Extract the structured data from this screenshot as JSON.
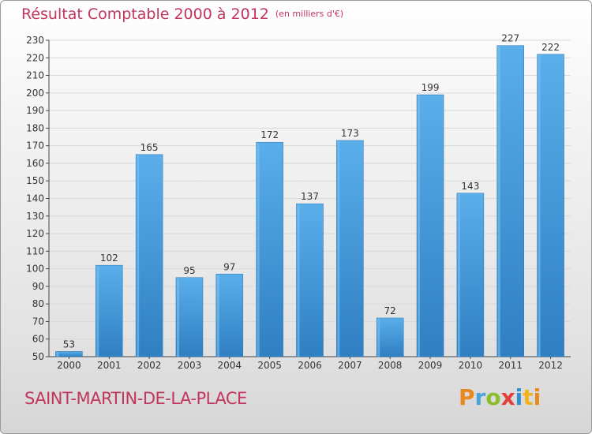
{
  "header": {
    "title": "Résultat Comptable 2000 à 2012",
    "unit": "(en milliers d'€)"
  },
  "footer": {
    "place": "SAINT-MARTIN-DE-LA-PLACE",
    "brand": "Proxiti"
  },
  "colors": {
    "accent_text": "#c2355e",
    "bar_top": "#5aaeea",
    "bar_bottom": "#2f7fc2",
    "grid": "#d9d9d9",
    "axis": "#444444"
  },
  "chart_data": {
    "type": "bar",
    "title": "Résultat Comptable 2000 à 2012",
    "subtitle": "(en milliers d'€)",
    "xlabel": "",
    "ylabel": "",
    "categories": [
      "2000",
      "2001",
      "2002",
      "2003",
      "2004",
      "2005",
      "2006",
      "2007",
      "2008",
      "2009",
      "2010",
      "2011",
      "2012"
    ],
    "values": [
      53,
      102,
      165,
      95,
      97,
      172,
      137,
      173,
      72,
      199,
      143,
      227,
      222
    ],
    "ylim": [
      50,
      230
    ],
    "yticks": [
      50,
      60,
      70,
      80,
      90,
      100,
      110,
      120,
      130,
      140,
      150,
      160,
      170,
      180,
      190,
      200,
      210,
      220,
      230
    ],
    "grid": true,
    "legend": "none"
  }
}
